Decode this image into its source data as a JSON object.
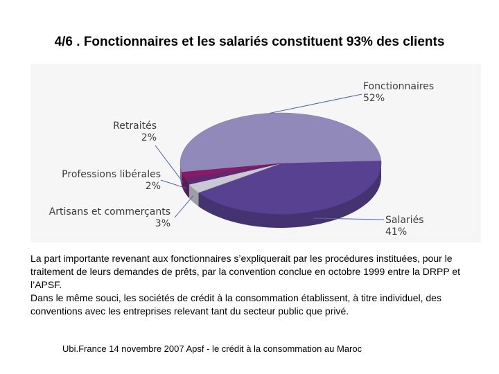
{
  "title": "4/6 . Fonctionnaires et les salariés constituent 93% des clients",
  "chart_data": {
    "type": "pie",
    "slices": [
      {
        "label": "Fonctionnaires",
        "value": 52,
        "display": "52%",
        "color": "#9189b9"
      },
      {
        "label": "Salariés",
        "value": 41,
        "display": "41%",
        "color": "#584191"
      },
      {
        "label": "Artisans et commerçants",
        "value": 3,
        "display": "3%",
        "color": "#c9c9d3"
      },
      {
        "label": "Professions libérales",
        "value": 2,
        "display": "2%",
        "color": "#5b2a70"
      },
      {
        "label": "Retraités",
        "value": 2,
        "display": "2%",
        "color": "#8a1a66"
      }
    ],
    "style": "3d"
  },
  "paragraphs": [
    "La part importante revenant aux fonctionnaires s’expliquerait par les procédures instituées, pour le traitement de leurs demandes de prêts, par la convention conclue en octobre 1999 entre la DRPP et l’APSF.",
    "Dans le même souci, les sociétés de crédit à la consommation établissent, à titre individuel, des conventions avec les entreprises relevant tant du secteur public que privé."
  ],
  "footer": "Ubi.France 14 novembre 2007  Apsf - le crédit à la consommation au Maroc"
}
